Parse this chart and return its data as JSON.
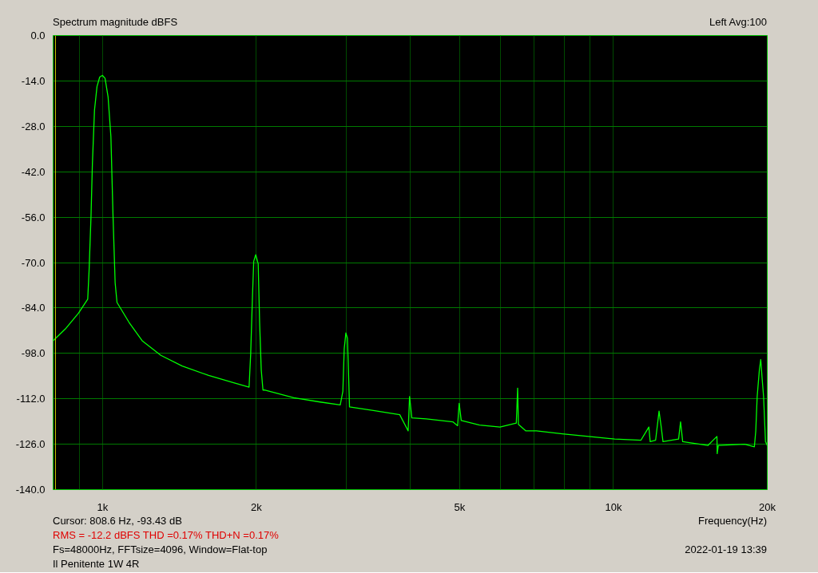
{
  "chart_data": {
    "type": "line",
    "title": "Spectrum magnitude dBFS",
    "xlabel": "Frequency(Hz)",
    "log": "x",
    "grid": true,
    "xlim": [
      800,
      20000
    ],
    "ylim": [
      -140,
      0
    ],
    "xticks": [
      {
        "value": 900,
        "label": null
      },
      {
        "value": 1000,
        "label": "1k"
      },
      {
        "value": 2000,
        "label": "2k"
      },
      {
        "value": 3000,
        "label": null
      },
      {
        "value": 4000,
        "label": null
      },
      {
        "value": 5000,
        "label": "5k"
      },
      {
        "value": 6000,
        "label": null
      },
      {
        "value": 7000,
        "label": null
      },
      {
        "value": 8000,
        "label": null
      },
      {
        "value": 9000,
        "label": null
      },
      {
        "value": 10000,
        "label": "10k"
      },
      {
        "value": 20000,
        "label": "20k"
      }
    ],
    "yticks": [
      {
        "value": 0,
        "label": "0.0"
      },
      {
        "value": -14,
        "label": "-14.0"
      },
      {
        "value": -28,
        "label": "-28.0"
      },
      {
        "value": -42,
        "label": "-42.0"
      },
      {
        "value": -56,
        "label": "-56.0"
      },
      {
        "value": -70,
        "label": "-70.0"
      },
      {
        "value": -84,
        "label": "-84.0"
      },
      {
        "value": -98,
        "label": "-98.0"
      },
      {
        "value": -112,
        "label": "-112.0"
      },
      {
        "value": -126,
        "label": "-126.0"
      },
      {
        "value": -140,
        "label": "-140.0"
      }
    ],
    "ref_lines": [
      {
        "axis": "x",
        "value": 808.6,
        "color": "#c8c800"
      }
    ],
    "annotations": [
      "Left  Avg:100",
      "Cursor:   808.6 Hz, -93.43 dB",
      "RMS =  -12.2 dBFS   THD =0.17%   THD+N =0.17%",
      "Fs=48000Hz, FFTsize=4096, Window=Flat-top",
      "2022-01-19  13:39",
      "Il Penitente 1W 4R"
    ],
    "series": [
      {
        "color": "#00ff00",
        "x": [
          800,
          845,
          897,
          935,
          941,
          949,
          955,
          964,
          975,
          987,
          999,
          1011,
          1025,
          1038,
          1048,
          1058,
          1067,
          1126,
          1195,
          1300,
          1431,
          1612,
          1817,
          1935,
          1949,
          1965,
          1976,
          1994,
          2016,
          2029,
          2044,
          2060,
          2073,
          2366,
          2666,
          2918,
          2953,
          2971,
          2993,
          3014,
          3025,
          3043,
          3388,
          3816,
          3963,
          3989,
          4029,
          4300,
          4847,
          4953,
          4988,
          5035,
          5468,
          5996,
          6453,
          6492,
          6515,
          6737,
          7065,
          7939,
          8934,
          10053,
          11312,
          11728,
          11800,
          12090,
          12280,
          12390,
          12500,
          13410,
          13530,
          13660,
          15300,
          15940,
          15960,
          16040,
          18060,
          18870,
          18990,
          19110,
          19300,
          19420,
          19540,
          19670,
          19840,
          20000
        ],
        "values": [
          -94.1,
          -90.5,
          -85.6,
          -81.3,
          -72.1,
          -55.7,
          -39.4,
          -23.0,
          -15.7,
          -12.8,
          -12.3,
          -13.2,
          -19.0,
          -31.2,
          -55.7,
          -76.2,
          -82.3,
          -88.4,
          -94.1,
          -98.6,
          -101.9,
          -104.8,
          -107.2,
          -108.4,
          -98.2,
          -80.2,
          -69.6,
          -67.6,
          -70.4,
          -88.4,
          -103.1,
          -109.3,
          -109.3,
          -111.7,
          -113.0,
          -113.9,
          -109.7,
          -96.6,
          -91.7,
          -93.3,
          -100.7,
          -114.5,
          -115.6,
          -116.9,
          -121.9,
          -111.3,
          -117.9,
          -118.2,
          -119.1,
          -120.3,
          -113.4,
          -118.7,
          -120.1,
          -120.7,
          -119.5,
          -108.7,
          -119.9,
          -121.9,
          -121.9,
          -122.8,
          -123.6,
          -124.4,
          -124.8,
          -120.7,
          -125.2,
          -124.8,
          -115.8,
          -120.3,
          -125.2,
          -124.4,
          -119.1,
          -125.2,
          -126.4,
          -123.6,
          -128.9,
          -126.4,
          -126.0,
          -126.8,
          -121.9,
          -111.3,
          -103.1,
          -99.9,
          -105.6,
          -111.3,
          -125.2,
          -126.4
        ]
      }
    ]
  }
}
